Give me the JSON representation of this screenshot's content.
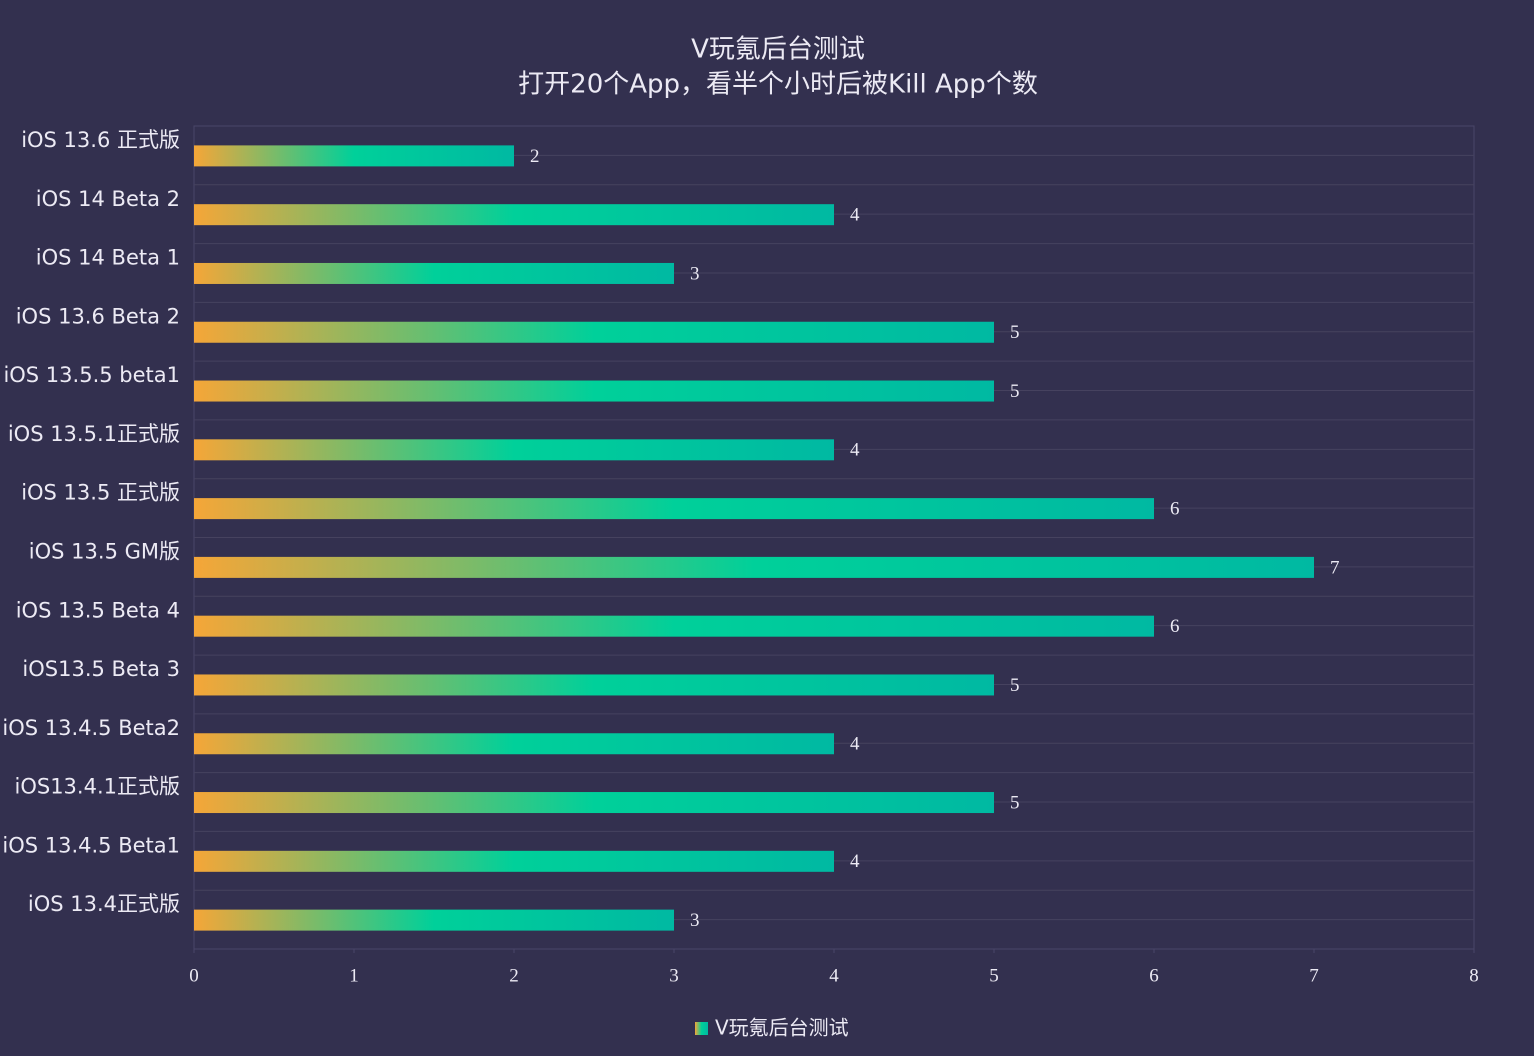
{
  "chart_data": {
    "type": "hbar",
    "title": "V玩氪后台测试",
    "subtitle": "打开20个App，看半个小时后被Kill App个数",
    "categories": [
      "iOS 13.6 正式版",
      "iOS 14 Beta 2",
      "iOS 14 Beta 1",
      "iOS 13.6 Beta 2",
      "iOS 13.5.5 beta1",
      "iOS 13.5.1正式版",
      "iOS 13.5 正式版",
      "iOS 13.5 GM版",
      "iOS 13.5 Beta 4",
      "iOS13.5 Beta 3",
      "iOS 13.4.5 Beta2",
      "iOS13.4.1正式版",
      "iOS 13.4.5 Beta1",
      "iOS 13.4正式版"
    ],
    "series": [
      {
        "name": "V玩氪后台测试",
        "color": [
          "#f5a638",
          "#00d09a",
          "#00b9a2"
        ],
        "values": [
          2,
          4,
          3,
          5,
          5,
          4,
          6,
          7,
          6,
          5,
          4,
          5,
          4,
          3
        ]
      }
    ],
    "xlim": [
      0,
      8
    ],
    "xticks": [
      0,
      1,
      2,
      3,
      4,
      5,
      6,
      7,
      8
    ],
    "legend": "bottom"
  }
}
